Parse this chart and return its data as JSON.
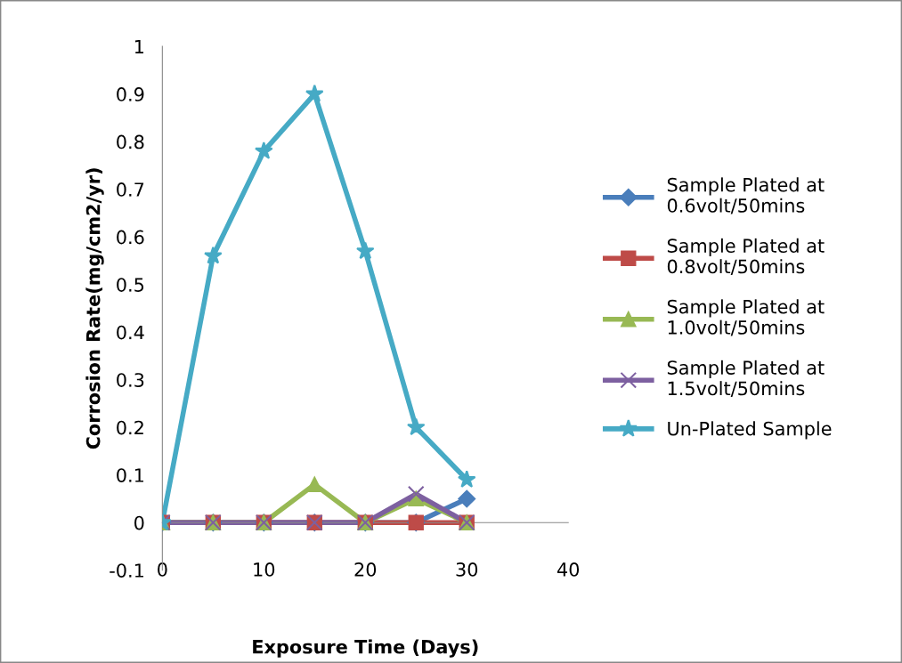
{
  "chart_data": {
    "type": "line",
    "xlabel": "Exposure Time (Days)",
    "ylabel": "Corrosion Rate(mg/cm2/yr)",
    "x": [
      0,
      5,
      10,
      15,
      20,
      25,
      30
    ],
    "series": [
      {
        "name": "Sample Plated at\n0.6volt/50mins",
        "color": "#4a7ebb",
        "marker": "diamond",
        "values": [
          0,
          0,
          0,
          0,
          0,
          0,
          0.05
        ]
      },
      {
        "name": "Sample Plated at\n0.8volt/50mins",
        "color": "#be4b48",
        "marker": "square",
        "values": [
          0,
          0,
          0,
          0,
          0,
          0,
          0
        ]
      },
      {
        "name": "Sample Plated at\n1.0volt/50mins",
        "color": "#98b954",
        "marker": "triangle",
        "values": [
          0,
          0,
          0,
          0.08,
          0,
          0.05,
          0
        ]
      },
      {
        "name": "Sample Plated at\n1.5volt/50mins",
        "color": "#7d60a0",
        "marker": "cross",
        "values": [
          0,
          0,
          0,
          0,
          0,
          0.06,
          0
        ]
      },
      {
        "name": "Un-Plated Sample",
        "color": "#46aac5",
        "marker": "star",
        "values": [
          0,
          0.56,
          0.78,
          0.9,
          0.57,
          0.2,
          0.09
        ]
      }
    ],
    "xlim": [
      0,
      40
    ],
    "xticks": [
      0,
      10,
      20,
      30,
      40
    ],
    "ylim": [
      -0.1,
      1
    ],
    "yticks": [
      -0.1,
      0,
      0.1,
      0.2,
      0.3,
      0.4,
      0.5,
      0.6,
      0.7,
      0.8,
      0.9,
      1
    ],
    "grid": false,
    "legend": "right",
    "line_style": "solid"
  }
}
